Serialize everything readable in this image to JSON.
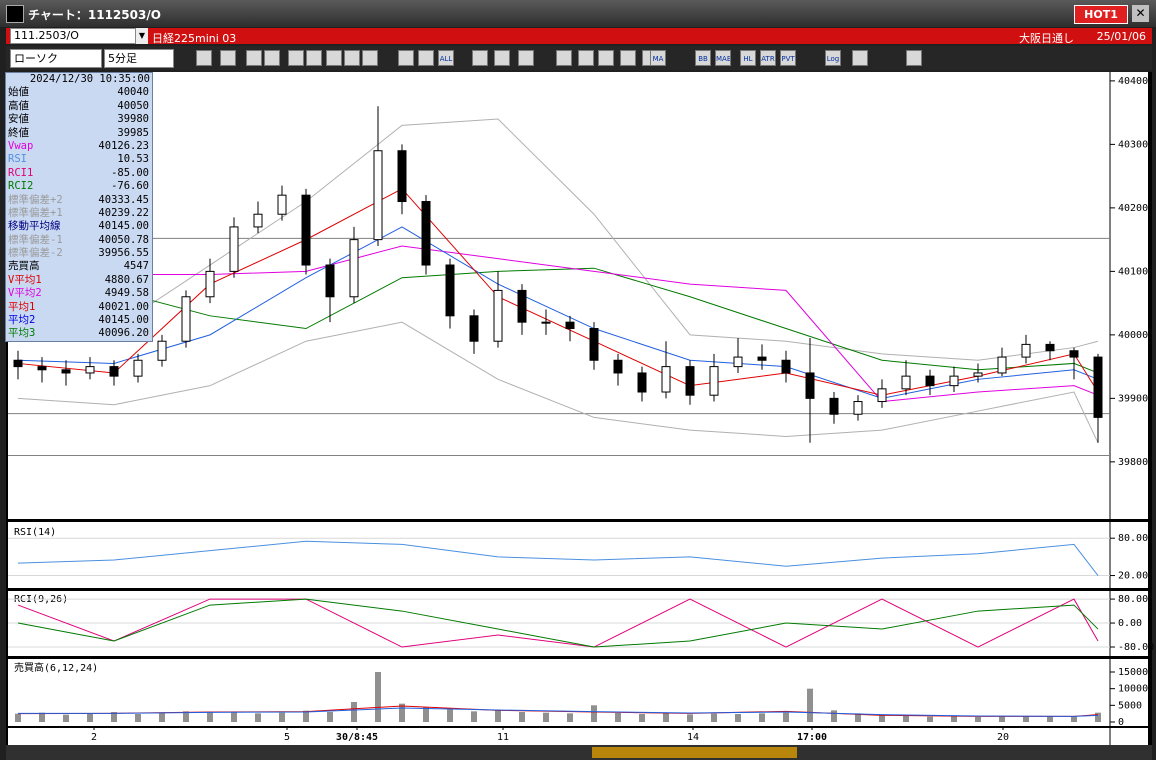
{
  "window": {
    "title": "チャート：1112503/O",
    "hot": "HOT1"
  },
  "header": {
    "symbol": "111.2503/O",
    "name": "日経225mini 03",
    "market": "大阪日通し",
    "date": "25/01/06"
  },
  "toolbar": {
    "chart_type": "ローソク",
    "interval": "5分足",
    "icons": [
      "ALL",
      "MA",
      "BB",
      "MAE",
      "HL",
      "ATR",
      "PVT",
      "Log"
    ]
  },
  "info": {
    "datetime": "2024/12/30  10:35:00",
    "rows": [
      {
        "label": "始値",
        "value": "40040",
        "color": "#000000"
      },
      {
        "label": "高値",
        "value": "40050",
        "color": "#000000"
      },
      {
        "label": "安値",
        "value": "39980",
        "color": "#000000"
      },
      {
        "label": "終値",
        "value": "39985",
        "color": "#000000"
      },
      {
        "label": "Vwap",
        "value": "40126.23",
        "color": "#e000e0"
      },
      {
        "label": "RSI",
        "value": "10.53",
        "color": "#5090e0"
      },
      {
        "label": "RCI1",
        "value": "-85.00",
        "color": "#e0007a"
      },
      {
        "label": "RCI2",
        "value": "-76.60",
        "color": "#007a00"
      },
      {
        "label": "標準偏差+2",
        "value": "40333.45",
        "color": "#9a9a9a"
      },
      {
        "label": "標準偏差+1",
        "value": "40239.22",
        "color": "#9a9a9a"
      },
      {
        "label": "移動平均線",
        "value": "40145.00",
        "color": "#000080"
      },
      {
        "label": "標準偏差-1",
        "value": "40050.78",
        "color": "#9a9a9a"
      },
      {
        "label": "標準偏差-2",
        "value": "39956.55",
        "color": "#9a9a9a"
      },
      {
        "label": "売買高",
        "value": "4547",
        "color": "#000000"
      },
      {
        "label": "V平均1",
        "value": "4880.67",
        "color": "#e00000"
      },
      {
        "label": "V平均2",
        "value": "4949.58",
        "color": "#e000e0"
      },
      {
        "label": "平均1",
        "value": "40021.00",
        "color": "#e00000"
      },
      {
        "label": "平均2",
        "value": "40145.00",
        "color": "#0000e0"
      },
      {
        "label": "平均3",
        "value": "40096.20",
        "color": "#007a00"
      }
    ]
  },
  "price": {
    "ylim": [
      39710,
      40414
    ],
    "yticks": [
      39800,
      39900,
      40000,
      40100,
      40200,
      40300,
      40400
    ],
    "hlines": [
      40152,
      39876,
      39810
    ],
    "candles": [
      [
        39960,
        39975,
        39930,
        39950
      ],
      [
        39950,
        39965,
        39925,
        39945
      ],
      [
        39945,
        39960,
        39920,
        39940
      ],
      [
        39940,
        39965,
        39930,
        39950
      ],
      [
        39950,
        39960,
        39920,
        39935
      ],
      [
        39935,
        39970,
        39925,
        39960
      ],
      [
        39960,
        40000,
        39950,
        39990
      ],
      [
        39990,
        40070,
        39980,
        40060
      ],
      [
        40060,
        40120,
        40050,
        40100
      ],
      [
        40100,
        40185,
        40090,
        40170
      ],
      [
        40170,
        40210,
        40160,
        40190
      ],
      [
        40190,
        40235,
        40180,
        40220
      ],
      [
        40220,
        40230,
        40095,
        40110
      ],
      [
        40110,
        40120,
        40020,
        40060
      ],
      [
        40060,
        40170,
        40050,
        40150
      ],
      [
        40150,
        40360,
        40140,
        40290
      ],
      [
        40290,
        40300,
        40190,
        40210
      ],
      [
        40210,
        40220,
        40095,
        40110
      ],
      [
        40110,
        40120,
        40010,
        40030
      ],
      [
        40030,
        40040,
        39970,
        39990
      ],
      [
        39990,
        40100,
        39980,
        40070
      ],
      [
        40070,
        40080,
        40000,
        40020
      ],
      [
        40020,
        40040,
        40000,
        40020
      ],
      [
        40020,
        40030,
        39990,
        40010
      ],
      [
        40010,
        40020,
        39945,
        39960
      ],
      [
        39960,
        39970,
        39920,
        39940
      ],
      [
        39940,
        39950,
        39895,
        39910
      ],
      [
        39910,
        39990,
        39900,
        39950
      ],
      [
        39950,
        39960,
        39890,
        39905
      ],
      [
        39905,
        39970,
        39895,
        39950
      ],
      [
        39950,
        39995,
        39940,
        39965
      ],
      [
        39965,
        39985,
        39945,
        39960
      ],
      [
        39960,
        39975,
        39925,
        39940
      ],
      [
        39940,
        39995,
        39830,
        39900
      ],
      [
        39900,
        39910,
        39860,
        39875
      ],
      [
        39875,
        39905,
        39865,
        39895
      ],
      [
        39895,
        39930,
        39885,
        39915
      ],
      [
        39915,
        39960,
        39905,
        39935
      ],
      [
        39935,
        39945,
        39905,
        39920
      ],
      [
        39920,
        39950,
        39910,
        39935
      ],
      [
        39935,
        39955,
        39925,
        39940
      ],
      [
        39940,
        39980,
        39935,
        39965
      ],
      [
        39965,
        40000,
        39955,
        39985
      ],
      [
        39985,
        39990,
        39960,
        39975
      ],
      [
        39975,
        39980,
        39930,
        39965
      ],
      [
        39965,
        39970,
        39830,
        39870
      ]
    ],
    "x_index": [
      0,
      4,
      8,
      12,
      16,
      20,
      24,
      28,
      32,
      36,
      40,
      44,
      45
    ],
    "lines": [
      {
        "color": "#b0b0b0",
        "values": [
          40000,
          40010,
          40110,
          40210,
          40330,
          40340,
          40190,
          40000,
          39990,
          39970,
          39960,
          39980,
          39990
        ]
      },
      {
        "color": "#b0b0b0",
        "values": [
          39900,
          39890,
          39920,
          39990,
          40020,
          39930,
          39870,
          39850,
          39840,
          39850,
          39880,
          39910,
          39830
        ]
      },
      {
        "color": "#007a00",
        "values": [
          40110,
          40070,
          40030,
          40010,
          40090,
          40100,
          40105,
          40060,
          40010,
          39960,
          39945,
          39955,
          39940
        ]
      },
      {
        "color": "#e000e0",
        "values": [
          40100,
          40095,
          40095,
          40100,
          40140,
          40120,
          40100,
          40080,
          40070,
          39895,
          39910,
          39920,
          39905
        ]
      },
      {
        "color": "#2060e0",
        "values": [
          39960,
          39955,
          40000,
          40090,
          40170,
          40080,
          40010,
          39960,
          39950,
          39900,
          39930,
          39945,
          39930
        ]
      },
      {
        "color": "#e00000",
        "values": [
          39955,
          39940,
          40080,
          40150,
          40230,
          40060,
          39990,
          39920,
          39940,
          39905,
          39935,
          39970,
          39910
        ]
      }
    ]
  },
  "rsi": {
    "label": "RSI(14)",
    "ylim": [
      0,
      106
    ],
    "yticks": [
      {
        "value": 20,
        "label": "20.00"
      },
      {
        "value": 80,
        "label": "80.00"
      }
    ],
    "series": [
      {
        "color": "#4a90e0",
        "values": [
          40,
          45,
          60,
          75,
          70,
          50,
          45,
          50,
          35,
          48,
          55,
          70,
          20
        ]
      }
    ]
  },
  "rci": {
    "label": "RCI(9,26)",
    "ylim": [
      -110,
      107
    ],
    "yticks": [
      {
        "value": -80,
        "label": "-80.00"
      },
      {
        "value": 0,
        "label": "0.00"
      },
      {
        "value": 80,
        "label": "80.00"
      }
    ],
    "series": [
      {
        "color": "#e0007a",
        "values": [
          60,
          -60,
          80,
          80,
          -80,
          -40,
          -80,
          80,
          -80,
          80,
          -80,
          80,
          -60
        ]
      },
      {
        "color": "#007a00",
        "values": [
          0,
          -60,
          60,
          80,
          40,
          -20,
          -80,
          -60,
          0,
          -20,
          40,
          60,
          -20
        ]
      }
    ]
  },
  "volume": {
    "label": "売買高(6,12,24)",
    "ylim": [
      -1200,
      18900
    ],
    "yticks": [
      0,
      5000,
      10000,
      15000
    ],
    "color": "#909090",
    "values": [
      2500,
      2800,
      2200,
      2600,
      3000,
      2400,
      2700,
      3200,
      2900,
      3100,
      2600,
      2800,
      3400,
      3000,
      6000,
      15000,
      5500,
      4500,
      3800,
      3200,
      3600,
      3000,
      2800,
      2600,
      5000,
      2700,
      2400,
      2600,
      2300,
      2500,
      2400,
      2600,
      2800,
      10000,
      3500,
      2600,
      2000,
      1800,
      1600,
      1700,
      1500,
      1600,
      1800,
      1700,
      1600,
      2800
    ],
    "series": [
      {
        "color": "#e00000",
        "values": [
          2500,
          2600,
          3000,
          3100,
          4800,
          3500,
          3000,
          2600,
          3200,
          2000,
          1700,
          1700,
          2200
        ]
      },
      {
        "color": "#2060e0",
        "values": [
          2600,
          2600,
          2900,
          3000,
          4200,
          3600,
          3100,
          2700,
          3000,
          2200,
          1800,
          1700,
          2000
        ]
      }
    ]
  },
  "xaxis": {
    "labels": [
      "2",
      "5",
      "30/8:45",
      "11",
      "14",
      "17:00",
      "20"
    ]
  }
}
